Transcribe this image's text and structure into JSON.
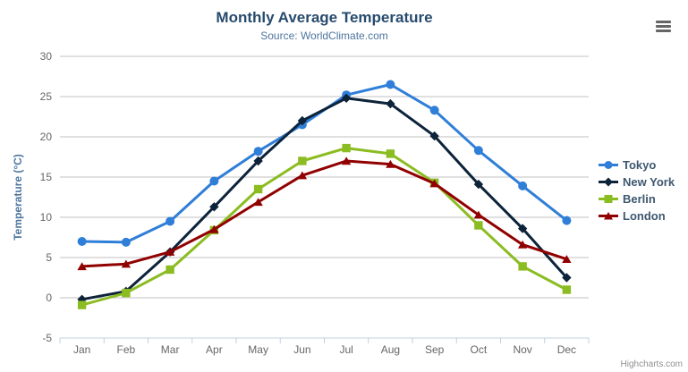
{
  "chart_data": {
    "type": "line",
    "title": "Monthly Average Temperature",
    "subtitle": "Source: WorldClimate.com",
    "xlabel": "",
    "ylabel": "Temperature (°C)",
    "categories": [
      "Jan",
      "Feb",
      "Mar",
      "Apr",
      "May",
      "Jun",
      "Jul",
      "Aug",
      "Sep",
      "Oct",
      "Nov",
      "Dec"
    ],
    "ylim": [
      -5,
      30
    ],
    "yticks": [
      -5,
      0,
      5,
      10,
      15,
      20,
      25,
      30
    ],
    "grid": true,
    "legend_position": "right",
    "series": [
      {
        "name": "Tokyo",
        "color": "#2f7ed8",
        "marker": "circle",
        "values": [
          7.0,
          6.9,
          9.5,
          14.5,
          18.2,
          21.5,
          25.2,
          26.5,
          23.3,
          18.3,
          13.9,
          9.6
        ]
      },
      {
        "name": "New York",
        "color": "#0d233a",
        "marker": "diamond",
        "values": [
          -0.2,
          0.8,
          5.7,
          11.3,
          17.0,
          22.0,
          24.8,
          24.1,
          20.1,
          14.1,
          8.6,
          2.5
        ]
      },
      {
        "name": "Berlin",
        "color": "#8bbc21",
        "marker": "square",
        "values": [
          -0.9,
          0.6,
          3.5,
          8.4,
          13.5,
          17.0,
          18.6,
          17.9,
          14.3,
          9.0,
          3.9,
          1.0
        ]
      },
      {
        "name": "London",
        "color": "#910000",
        "marker": "triangle",
        "values": [
          3.9,
          4.2,
          5.7,
          8.5,
          11.9,
          15.2,
          17.0,
          16.6,
          14.2,
          10.3,
          6.6,
          4.8
        ]
      }
    ],
    "colors": {
      "title": "#274b6d",
      "subtitle": "#4d759e",
      "axis_title": "#4d759e",
      "tick_label": "#666666",
      "grid_line": "#c0c0c0",
      "axis_line": "#c0d0e0",
      "legend_text": "#3e576f"
    }
  },
  "export_menu": {
    "icon": "hamburger-icon"
  },
  "credits": {
    "label": "Highcharts.com"
  }
}
